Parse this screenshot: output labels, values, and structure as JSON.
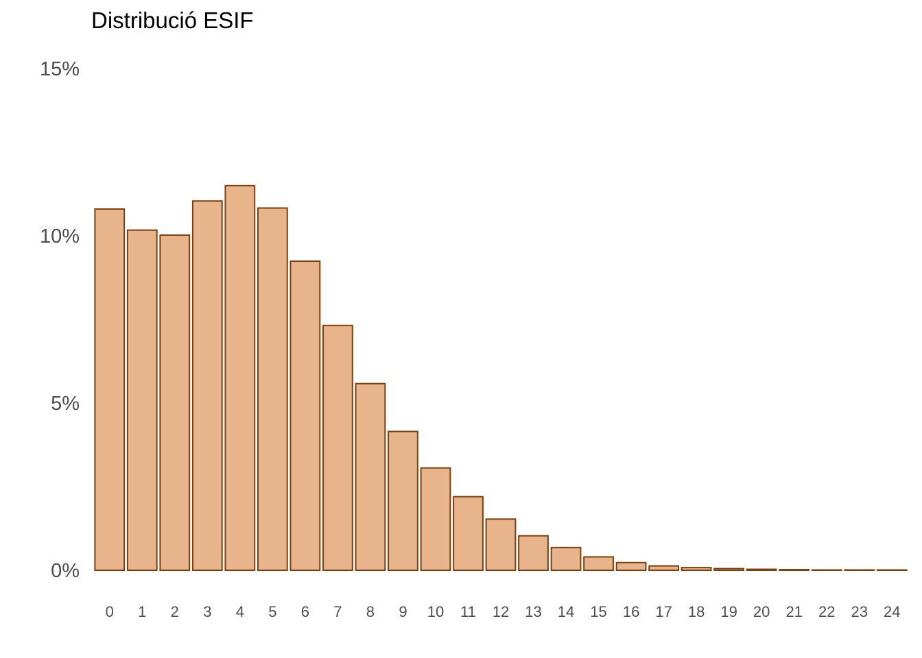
{
  "chart_data": {
    "type": "bar",
    "title": "Distribució ESIF",
    "xlabel": "",
    "ylabel": "",
    "categories": [
      "0",
      "1",
      "2",
      "3",
      "4",
      "5",
      "6",
      "7",
      "8",
      "9",
      "10",
      "11",
      "12",
      "13",
      "14",
      "15",
      "16",
      "17",
      "18",
      "19",
      "20",
      "21",
      "22",
      "23",
      "24"
    ],
    "values": [
      10.8,
      10.17,
      10.02,
      11.04,
      11.5,
      10.83,
      9.24,
      7.32,
      5.58,
      4.15,
      3.06,
      2.2,
      1.53,
      1.03,
      0.68,
      0.4,
      0.23,
      0.13,
      0.08,
      0.05,
      0.03,
      0.02,
      0.01,
      0.01,
      0.01
    ],
    "y_ticks": [
      0,
      5,
      10,
      15
    ],
    "y_tick_labels": [
      "0%",
      "5%",
      "10%",
      "15%"
    ],
    "ylim": [
      0,
      15
    ],
    "grid": false,
    "legend": "none",
    "colors": {
      "bar_fill": "#e8b48c",
      "bar_stroke": "#7f3f0c"
    }
  }
}
